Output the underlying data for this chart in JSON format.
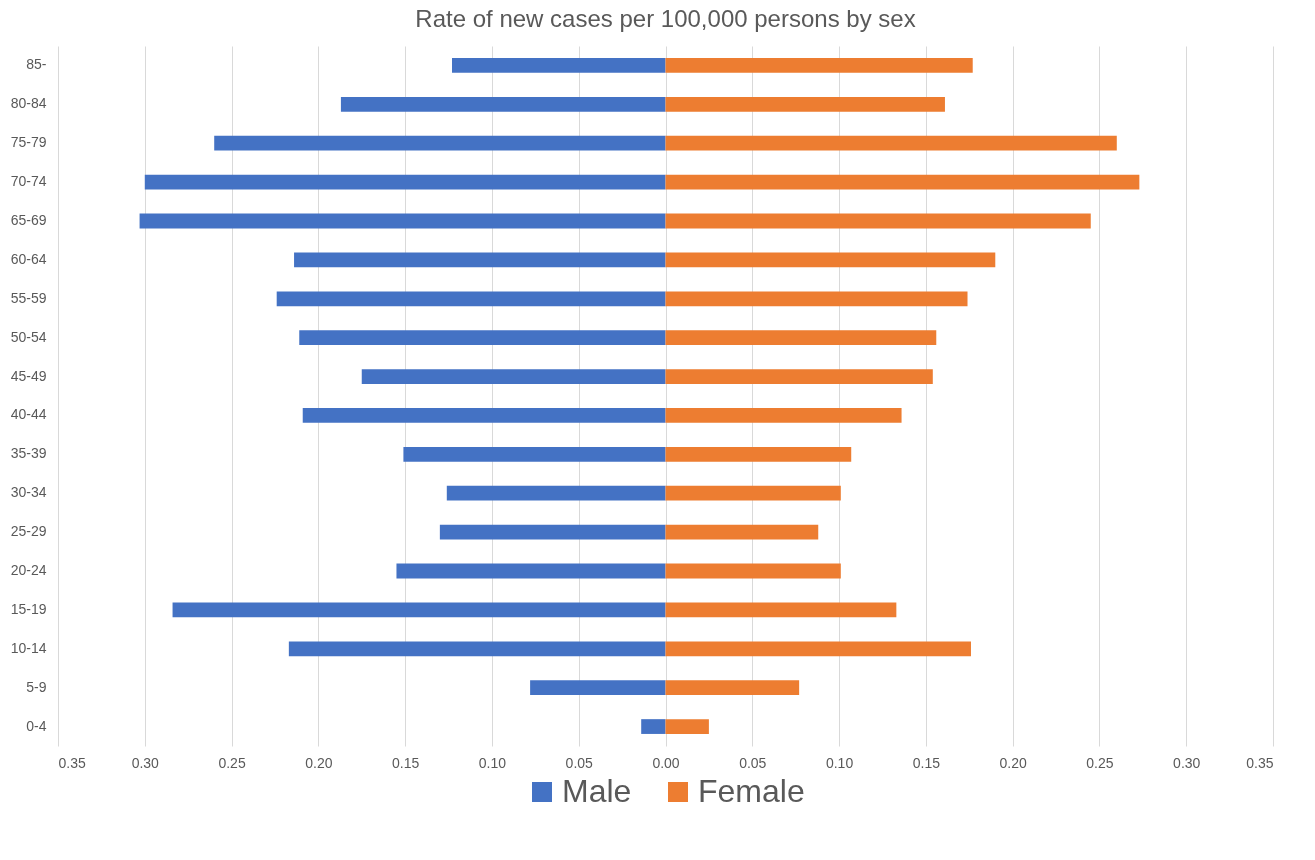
{
  "chart_data": {
    "type": "bar",
    "orientation": "horizontal",
    "stacked": true,
    "title": "Rate of new cases per 100,000 persons by sex",
    "categories": [
      "85-",
      "80-84",
      "75-79",
      "70-74",
      "65-69",
      "60-64",
      "55-59",
      "50-54",
      "45-49",
      "40-44",
      "35-39",
      "30-34",
      "25-29",
      "20-24",
      "15-19",
      "10-14",
      "5-9",
      "0-4"
    ],
    "series": [
      {
        "name": "Male",
        "color": "#4472c4",
        "values": [
          -0.123,
          -0.187,
          -0.26,
          -0.3,
          -0.303,
          -0.214,
          -0.224,
          -0.211,
          -0.175,
          -0.209,
          -0.151,
          -0.126,
          -0.13,
          -0.155,
          -0.284,
          -0.217,
          -0.078,
          -0.014
        ]
      },
      {
        "name": "Female",
        "color": "#ed7d31",
        "values": [
          0.177,
          0.161,
          0.26,
          0.273,
          0.245,
          0.19,
          0.174,
          0.156,
          0.154,
          0.136,
          0.107,
          0.101,
          0.088,
          0.101,
          0.133,
          0.176,
          0.077,
          0.025
        ]
      }
    ],
    "xlim": [
      -0.35,
      0.35
    ],
    "xticks": [
      {
        "value": -0.35,
        "label": "0.35"
      },
      {
        "value": -0.3,
        "label": "0.30"
      },
      {
        "value": -0.25,
        "label": "0.25"
      },
      {
        "value": -0.2,
        "label": "0.20"
      },
      {
        "value": -0.15,
        "label": "0.15"
      },
      {
        "value": -0.1,
        "label": "0.10"
      },
      {
        "value": -0.05,
        "label": "0.05"
      },
      {
        "value": 0,
        "label": "0.00"
      },
      {
        "value": 0.05,
        "label": "0.05"
      },
      {
        "value": 0.1,
        "label": "0.10"
      },
      {
        "value": 0.15,
        "label": "0.15"
      },
      {
        "value": 0.2,
        "label": "0.20"
      },
      {
        "value": 0.25,
        "label": "0.25"
      },
      {
        "value": 0.3,
        "label": "0.30"
      },
      {
        "value": 0.35,
        "label": "0.35"
      }
    ],
    "grid": "x",
    "legend": "bottom"
  }
}
